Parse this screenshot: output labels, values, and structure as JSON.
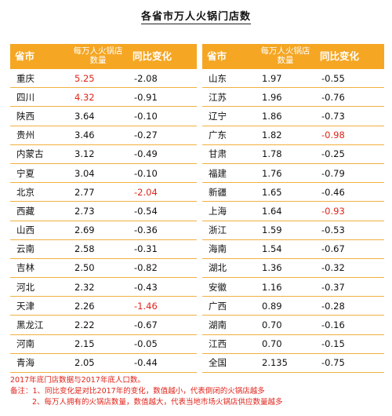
{
  "title": "各省市万人火锅门店数",
  "headers": {
    "province": "省市",
    "stores": "每万人火锅店数量",
    "change": "同比变化"
  },
  "highlight_color": "#e0241b",
  "left_rows": [
    {
      "name": "重庆",
      "value": "5.25",
      "change": "-2.08",
      "value_red": true,
      "change_red": false
    },
    {
      "name": "四川",
      "value": "4.32",
      "change": "-0.91",
      "value_red": true,
      "change_red": false
    },
    {
      "name": "陕西",
      "value": "3.64",
      "change": "-0.10",
      "value_red": false,
      "change_red": false
    },
    {
      "name": "贵州",
      "value": "3.46",
      "change": "-0.27",
      "value_red": false,
      "change_red": false
    },
    {
      "name": "内蒙古",
      "value": "3.12",
      "change": "-0.49",
      "value_red": false,
      "change_red": false
    },
    {
      "name": "宁夏",
      "value": "3.04",
      "change": "-0.10",
      "value_red": false,
      "change_red": false
    },
    {
      "name": "北京",
      "value": "2.77",
      "change": "-2.04",
      "value_red": false,
      "change_red": true
    },
    {
      "name": "西藏",
      "value": "2.73",
      "change": "-0.54",
      "value_red": false,
      "change_red": false
    },
    {
      "name": "山西",
      "value": "2.69",
      "change": "-0.36",
      "value_red": false,
      "change_red": false
    },
    {
      "name": "云南",
      "value": "2.58",
      "change": "-0.31",
      "value_red": false,
      "change_red": false
    },
    {
      "name": "吉林",
      "value": "2.50",
      "change": "-0.82",
      "value_red": false,
      "change_red": false
    },
    {
      "name": "河北",
      "value": "2.32",
      "change": "-0.43",
      "value_red": false,
      "change_red": false
    },
    {
      "name": "天津",
      "value": "2.26",
      "change": "-1.46",
      "value_red": false,
      "change_red": true
    },
    {
      "name": "黑龙江",
      "value": "2.22",
      "change": "-0.67",
      "value_red": false,
      "change_red": false
    },
    {
      "name": "河南",
      "value": "2.15",
      "change": "-0.05",
      "value_red": false,
      "change_red": false
    },
    {
      "name": "青海",
      "value": "2.05",
      "change": "-0.44",
      "value_red": false,
      "change_red": false
    }
  ],
  "right_rows": [
    {
      "name": "山东",
      "value": "1.97",
      "change": "-0.55",
      "value_red": false,
      "change_red": false
    },
    {
      "name": "江苏",
      "value": "1.96",
      "change": "-0.76",
      "value_red": false,
      "change_red": false
    },
    {
      "name": "辽宁",
      "value": "1.86",
      "change": "-0.73",
      "value_red": false,
      "change_red": false
    },
    {
      "name": "广东",
      "value": "1.82",
      "change": "-0.98",
      "value_red": false,
      "change_red": true
    },
    {
      "name": "甘肃",
      "value": "1.78",
      "change": "-0.25",
      "value_red": false,
      "change_red": false
    },
    {
      "name": "福建",
      "value": "1.76",
      "change": "-0.79",
      "value_red": false,
      "change_red": false
    },
    {
      "name": "新疆",
      "value": "1.65",
      "change": "-0.46",
      "value_red": false,
      "change_red": false
    },
    {
      "name": "上海",
      "value": "1.64",
      "change": "-0.93",
      "value_red": false,
      "change_red": true
    },
    {
      "name": "浙江",
      "value": "1.59",
      "change": "-0.53",
      "value_red": false,
      "change_red": false
    },
    {
      "name": "海南",
      "value": "1.54",
      "change": "-0.67",
      "value_red": false,
      "change_red": false
    },
    {
      "name": "湖北",
      "value": "1.36",
      "change": "-0.32",
      "value_red": false,
      "change_red": false
    },
    {
      "name": "安徽",
      "value": "1.16",
      "change": "-0.37",
      "value_red": false,
      "change_red": false
    },
    {
      "name": "广西",
      "value": "0.89",
      "change": "-0.28",
      "value_red": false,
      "change_red": false
    },
    {
      "name": "湖南",
      "value": "0.70",
      "change": "-0.16",
      "value_red": false,
      "change_red": false
    },
    {
      "name": "江西",
      "value": "0.70",
      "change": "-0.15",
      "value_red": false,
      "change_red": false
    },
    {
      "name": "全国",
      "value": "2.135",
      "change": "-0.75",
      "value_red": false,
      "change_red": false
    }
  ],
  "notes": {
    "line1": "2017年底门店数据与2017年底人口数。",
    "line2": "备注：1、同比变化是对比2017年的变化，数值越小，代表倒闭的火锅店越多",
    "line3": "2、每万人拥有的火锅店数量，数值越大，代表当地市场火锅店供应数量越多"
  }
}
